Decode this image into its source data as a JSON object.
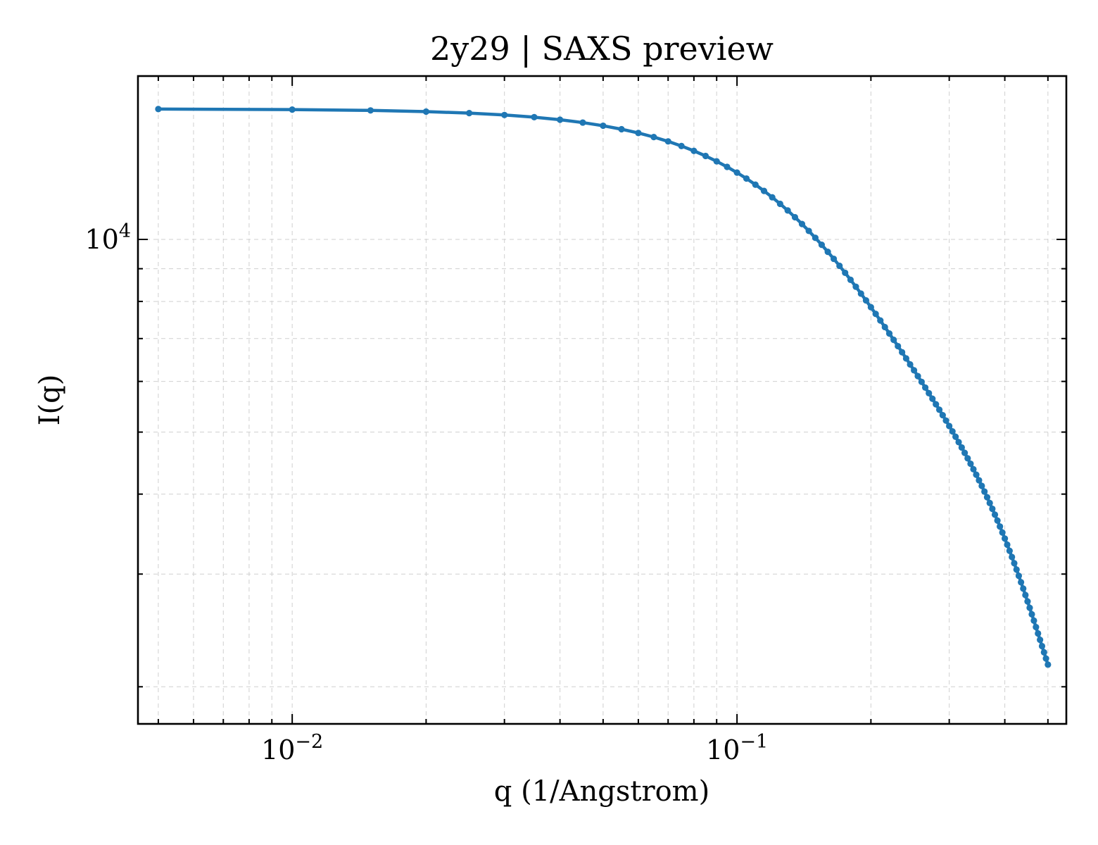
{
  "chart_data": {
    "type": "line",
    "title": "2y29 | SAXS preview",
    "xlabel": "q (1/Angstrom)",
    "ylabel": "I(q)",
    "xscale": "log",
    "yscale": "log",
    "xlim": [
      0.0045,
      0.55
    ],
    "ylim": [
      1750,
      18000
    ],
    "grid": true,
    "x_ticks": [
      {
        "value": 0.01,
        "base": "10",
        "exp": "−2"
      },
      {
        "value": 0.1,
        "base": "10",
        "exp": "−1"
      }
    ],
    "y_ticks": [
      {
        "value": 10000,
        "base": "10",
        "exp": "4"
      }
    ],
    "color": "#1f77b4",
    "series": [
      {
        "x": [
          0.005,
          0.01,
          0.015,
          0.02,
          0.025,
          0.03,
          0.035,
          0.04,
          0.045,
          0.05,
          0.055,
          0.06,
          0.065,
          0.07,
          0.075,
          0.08,
          0.085,
          0.09,
          0.095,
          0.1,
          0.105,
          0.11,
          0.115,
          0.12,
          0.125,
          0.13,
          0.135,
          0.14,
          0.145,
          0.15,
          0.155,
          0.16,
          0.165,
          0.17,
          0.175,
          0.18,
          0.185,
          0.19,
          0.195,
          0.2,
          0.205,
          0.21,
          0.215,
          0.22,
          0.225,
          0.23,
          0.235,
          0.24,
          0.245,
          0.25,
          0.255,
          0.26,
          0.265,
          0.27,
          0.275,
          0.28,
          0.285,
          0.29,
          0.295,
          0.3,
          0.305,
          0.31,
          0.315,
          0.32,
          0.325,
          0.33,
          0.335,
          0.34,
          0.345,
          0.35,
          0.355,
          0.36,
          0.365,
          0.37,
          0.375,
          0.38,
          0.385,
          0.39,
          0.395,
          0.4,
          0.405,
          0.41,
          0.415,
          0.42,
          0.425,
          0.43,
          0.435,
          0.44,
          0.445,
          0.45,
          0.455,
          0.46,
          0.465,
          0.47,
          0.475,
          0.48,
          0.485,
          0.49,
          0.495,
          0.5
        ],
        "y": [
          15985,
          15955,
          15907,
          15839,
          15752,
          15647,
          15524,
          15383,
          15226,
          15054,
          14867,
          14666,
          14453,
          14229,
          13995,
          13752,
          13502,
          13245,
          12983,
          12717,
          12449,
          12178,
          11907,
          11636,
          11366,
          11098,
          10832,
          10570,
          10311,
          10057,
          9808,
          9564,
          9326,
          9094,
          8868,
          8648,
          8435,
          8229,
          8029,
          7836,
          7650,
          7470,
          7296,
          7129,
          6968,
          6812,
          6663,
          6518,
          6379,
          6245,
          6115,
          5990,
          5868,
          5751,
          5637,
          5526,
          5419,
          5314,
          5211,
          5111,
          5013,
          4917,
          4823,
          4731,
          4640,
          4550,
          4462,
          4375,
          4289,
          4204,
          4120,
          4037,
          3955,
          3874,
          3794,
          3715,
          3637,
          3560,
          3484,
          3409,
          3335,
          3262,
          3190,
          3119,
          3049,
          2981,
          2913,
          2847,
          2782,
          2719,
          2657,
          2596,
          2537,
          2479,
          2423,
          2368,
          2315,
          2264,
          2214,
          2166
        ]
      }
    ]
  }
}
